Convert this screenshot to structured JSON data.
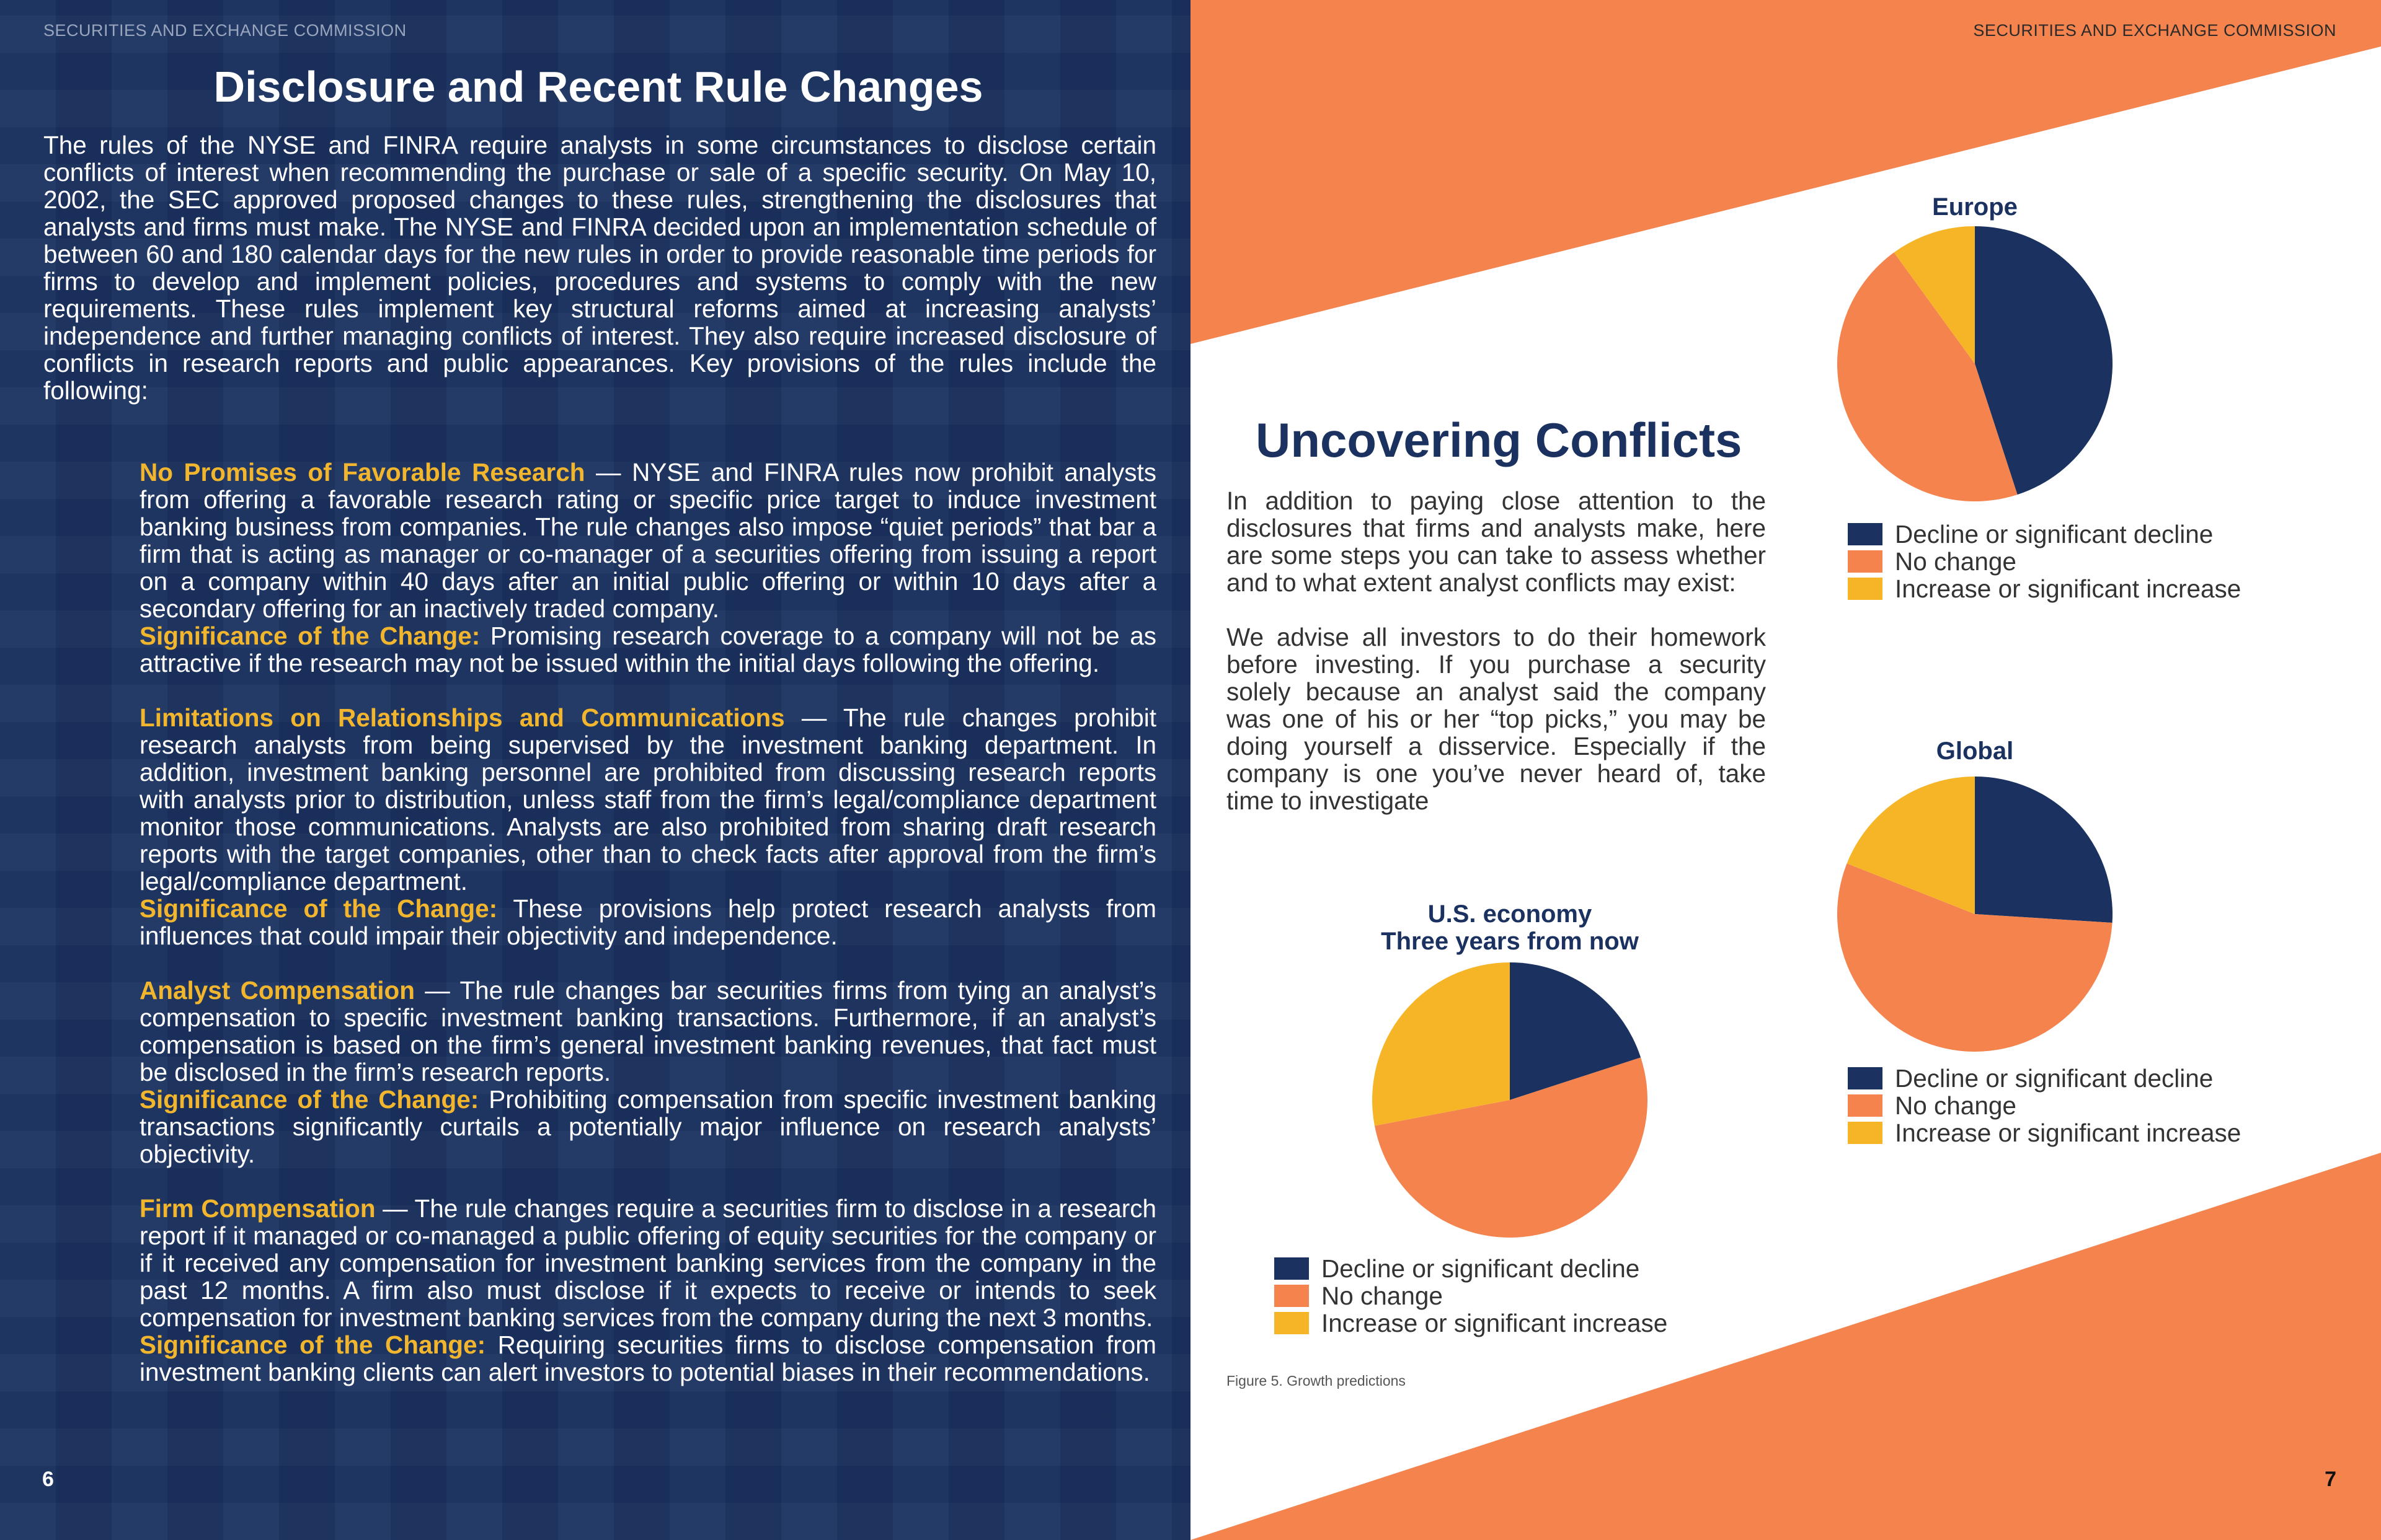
{
  "header": {
    "left": "SECURITIES AND EXCHANGE COMMISSION",
    "right": "SECURITIES AND EXCHANGE COMMISSION"
  },
  "left": {
    "title": "Disclosure and Recent Rule Changes",
    "intro": "The rules of the NYSE and FINRA require analysts in some circumstances to disclose certain conflicts of interest when recommending the purchase or sale of a specific security. On May 10, 2002, the SEC approved proposed changes to these rules, strengthening the disclosures that analysts and firms must make. The NYSE and FINRA decided upon an implementation schedule of between 60 and 180 calendar days for the new rules in order to provide reasonable time periods for firms to develop and implement policies, procedures and systems to comply with the new requirements. These rules implement key structural reforms aimed at increasing analysts’ independence and further managing conflicts of interest. They also require increased disclosure of conflicts in research reports and public appearances. Key provisions of the rules include the following:",
    "provisions": [
      {
        "heading": "No Promises of Favorable Research",
        "body": " — NYSE and FINRA rules now prohibit analysts from offering a favorable research rating or specific price target to induce investment banking business from companies. The rule changes also impose “quiet periods” that bar a firm that is acting as manager or co-manager of a securities offering from issuing a report on a company within 40 days after an initial public offering or within 10 days after a secondary offering for an inactively traded company.",
        "sig_label": "Significance of the Change:",
        "sig_body": " Promising research coverage to a company will not be as attractive if the research may not be issued within the initial days following the offering."
      },
      {
        "heading": "Limitations on Relationships and Communications",
        "body": " — The rule changes prohibit research analysts from being supervised by the investment banking department. In addition, investment banking personnel are prohibited from discussing research reports with analysts prior to distribution, unless staff from the firm’s legal/compliance department monitor those communications. Analysts are also prohibited from sharing draft research reports with the target companies, other than to check facts after approval from the firm’s legal/compliance department.",
        "sig_label": "Significance of the Change:",
        "sig_body": " These provisions help protect research analysts from influences that could impair their objectivity and independence."
      },
      {
        "heading": "Analyst Compensation",
        "body": " — The rule changes bar securities firms from tying an analyst’s compensation to specific investment banking transactions. Furthermore, if an analyst’s compensation is based on the firm’s general investment banking revenues, that fact must be disclosed in the firm’s research reports.",
        "sig_label": "Significance of the Change:",
        "sig_body": " Prohibiting compensation from specific investment banking transactions significantly curtails a potentially major influence on research analysts’ objectivity."
      },
      {
        "heading": "Firm Compensation",
        "body": " — The rule changes require a securities firm to disclose in a research report if it managed or co-managed a public offering of equity securities for the company or if it received any compensation for investment banking services from the company in the past 12 months. A firm also must disclose if it expects to receive or intends to seek compensation for investment banking services from the company during the next 3 months.",
        "sig_label": "Significance of the Change:",
        "sig_body": " Requiring securities firms to disclose compensation from investment banking clients can alert investors to potential biases in their recommendations."
      }
    ],
    "page_number": "6"
  },
  "right": {
    "title": "Uncovering Conflicts",
    "paragraphs": [
      "In addition to paying close attention to the disclosures that firms and analysts make, here are some steps you can take to assess whether and to what extent analyst conflicts may exist:",
      "We advise all investors to do their homework before investing. If you purchase a security solely because an analyst said the company was one of his or her “top picks,” you may be doing yourself a disservice. Especially if the company is one you’ve never heard of, take time to investigate"
    ],
    "caption": "Figure 5. Growth predictions",
    "page_number": "7"
  },
  "colors": {
    "navy": "#1b3260",
    "orange": "#f4834e",
    "yellow": "#f6b527"
  },
  "chart_data": [
    {
      "type": "pie",
      "title": "Europe",
      "categories": [
        "Decline or significant decline",
        "No change",
        "Increase or significant increase"
      ],
      "values": [
        45,
        45,
        10
      ],
      "legend": "bottom"
    },
    {
      "type": "pie",
      "title": "Global",
      "categories": [
        "Decline or significant decline",
        "No change",
        "Increase or significant increase"
      ],
      "values": [
        26,
        55,
        19
      ],
      "legend": "bottom"
    },
    {
      "type": "pie",
      "title": "U.S. economy\nThree years from now",
      "categories": [
        "Decline or significant decline",
        "No change",
        "Increase or significant increase"
      ],
      "values": [
        20,
        52,
        28
      ],
      "legend": "bottom"
    }
  ]
}
